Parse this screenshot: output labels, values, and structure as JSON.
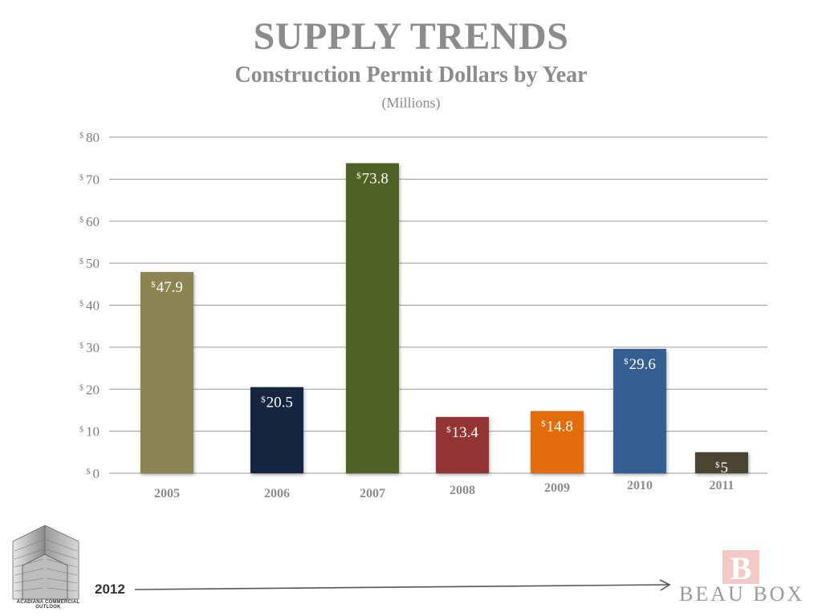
{
  "header": {
    "title": "SUPPLY TRENDS",
    "subtitle": "Construction Permit Dollars by Year",
    "unit": "(Millions)"
  },
  "chart_data": {
    "type": "bar",
    "title": "SUPPLY TRENDS",
    "subtitle": "Construction Permit Dollars by Year",
    "unit_label": "(Millions)",
    "categories": [
      "2005",
      "2006",
      "2007",
      "2008",
      "2009",
      "2010",
      "2011"
    ],
    "values": [
      47.9,
      20.5,
      73.8,
      13.4,
      14.8,
      29.6,
      5
    ],
    "value_labels": [
      "47.9",
      "20.5",
      "73.8",
      "13.4",
      "14.8",
      "29.6",
      "5"
    ],
    "value_prefix": "$",
    "colors": [
      "#8b8552",
      "#13263f",
      "#4f6228",
      "#943634",
      "#e36c0a",
      "#365f91",
      "#4a4530"
    ],
    "ylim": [
      0,
      80
    ],
    "yticks": [
      0,
      10,
      20,
      30,
      40,
      50,
      60,
      70,
      80
    ],
    "tick_prefix": "$",
    "grid": true,
    "legend": "none"
  },
  "footer": {
    "logo_caption": "ACADIANA COMMERCIAL OUTLOOK",
    "year": "2012",
    "brand_mark": "B",
    "brand_name": "BEAU BOX"
  }
}
